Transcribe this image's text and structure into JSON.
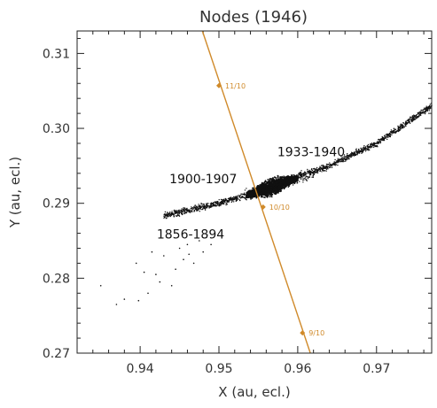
{
  "chart_data": {
    "type": "scatter",
    "title": "Nodes (1946)",
    "xlabel": "X (au, ecl.)",
    "ylabel": "Y (au, ecl.)",
    "xlim": [
      0.932,
      0.977
    ],
    "ylim": [
      0.27,
      0.313
    ],
    "x_ticks": [
      "0.94",
      "0.95",
      "0.96",
      "0.97"
    ],
    "y_ticks": [
      "0.27",
      "0.28",
      "0.29",
      "0.30",
      "0.31"
    ],
    "grid": false,
    "colors": {
      "points": "#111111",
      "orbit": "#d08a2a"
    },
    "orbit_line": {
      "from": {
        "x": 0.9479,
        "y": 0.313
      },
      "to": {
        "x": 0.9616,
        "y": 0.27
      }
    },
    "date_markers": [
      {
        "label": "11/10",
        "x": 0.95,
        "y": 0.3057
      },
      {
        "label": "10/10",
        "x": 0.9556,
        "y": 0.2895
      },
      {
        "label": "9/10",
        "x": 0.9606,
        "y": 0.2727
      }
    ],
    "annotations": [
      {
        "text": "1933-1940",
        "x": 0.9617,
        "y": 0.2963
      },
      {
        "text": "1900-1907",
        "x": 0.948,
        "y": 0.2927
      },
      {
        "text": "1856-1894",
        "x": 0.9464,
        "y": 0.2853
      }
    ],
    "point_cloud": {
      "description_free": true,
      "trend": [
        [
          0.943,
          0.2883
        ],
        [
          0.948,
          0.2895
        ],
        [
          0.952,
          0.2906
        ],
        [
          0.956,
          0.2919
        ],
        [
          0.96,
          0.2934
        ],
        [
          0.964,
          0.295
        ],
        [
          0.97,
          0.298
        ],
        [
          0.977,
          0.303
        ]
      ],
      "core": {
        "x": [
          0.9535,
          0.96
        ],
        "y": [
          0.2905,
          0.294
        ]
      },
      "scattered_points": [
        [
          0.935,
          0.279
        ],
        [
          0.937,
          0.2765
        ],
        [
          0.938,
          0.2772
        ],
        [
          0.9395,
          0.282
        ],
        [
          0.9405,
          0.2808
        ],
        [
          0.941,
          0.278
        ],
        [
          0.942,
          0.2805
        ],
        [
          0.9425,
          0.2795
        ],
        [
          0.943,
          0.283
        ],
        [
          0.944,
          0.279
        ],
        [
          0.945,
          0.284
        ],
        [
          0.9455,
          0.2825
        ],
        [
          0.946,
          0.2845
        ],
        [
          0.9468,
          0.282
        ],
        [
          0.9475,
          0.285
        ],
        [
          0.948,
          0.2835
        ],
        [
          0.9485,
          0.2858
        ],
        [
          0.949,
          0.2845
        ],
        [
          0.9398,
          0.277
        ],
        [
          0.9415,
          0.2835
        ],
        [
          0.9445,
          0.2812
        ],
        [
          0.9462,
          0.2832
        ]
      ]
    }
  }
}
